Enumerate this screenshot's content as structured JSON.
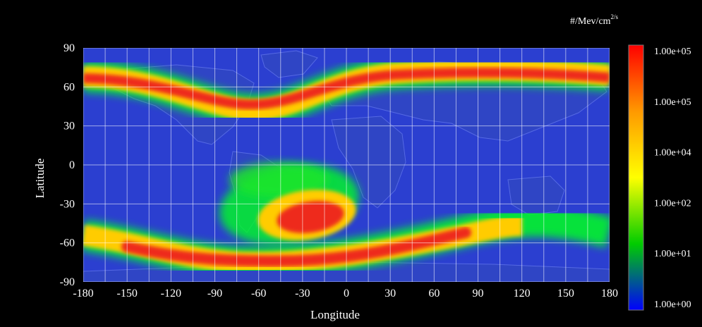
{
  "map": {
    "xlabel": "Longitude",
    "ylabel": "Latitude",
    "xlim": [
      -180,
      180
    ],
    "ylim": [
      -90,
      90
    ],
    "x_ticks": [
      "-180",
      "-150",
      "-120",
      "-90",
      "-60",
      "-30",
      "0",
      "30",
      "60",
      "90",
      "120",
      "150",
      "180"
    ],
    "y_ticks": [
      "90",
      "60",
      "30",
      "0",
      "-30",
      "-60",
      "-90"
    ],
    "grid": true,
    "background_color": "#2b3fd0"
  },
  "colorbar": {
    "unit_base": "#/Mev/cm",
    "unit_sup": "2/s",
    "labels": [
      "1.00e+05",
      "1.00e+05",
      "1.00e+04",
      "1.00e+02",
      "1.00e+01",
      "1.00e+00"
    ],
    "colors": [
      "#ff0000",
      "#ff9900",
      "#ffff00",
      "#00cc00",
      "#0000ff"
    ]
  }
}
